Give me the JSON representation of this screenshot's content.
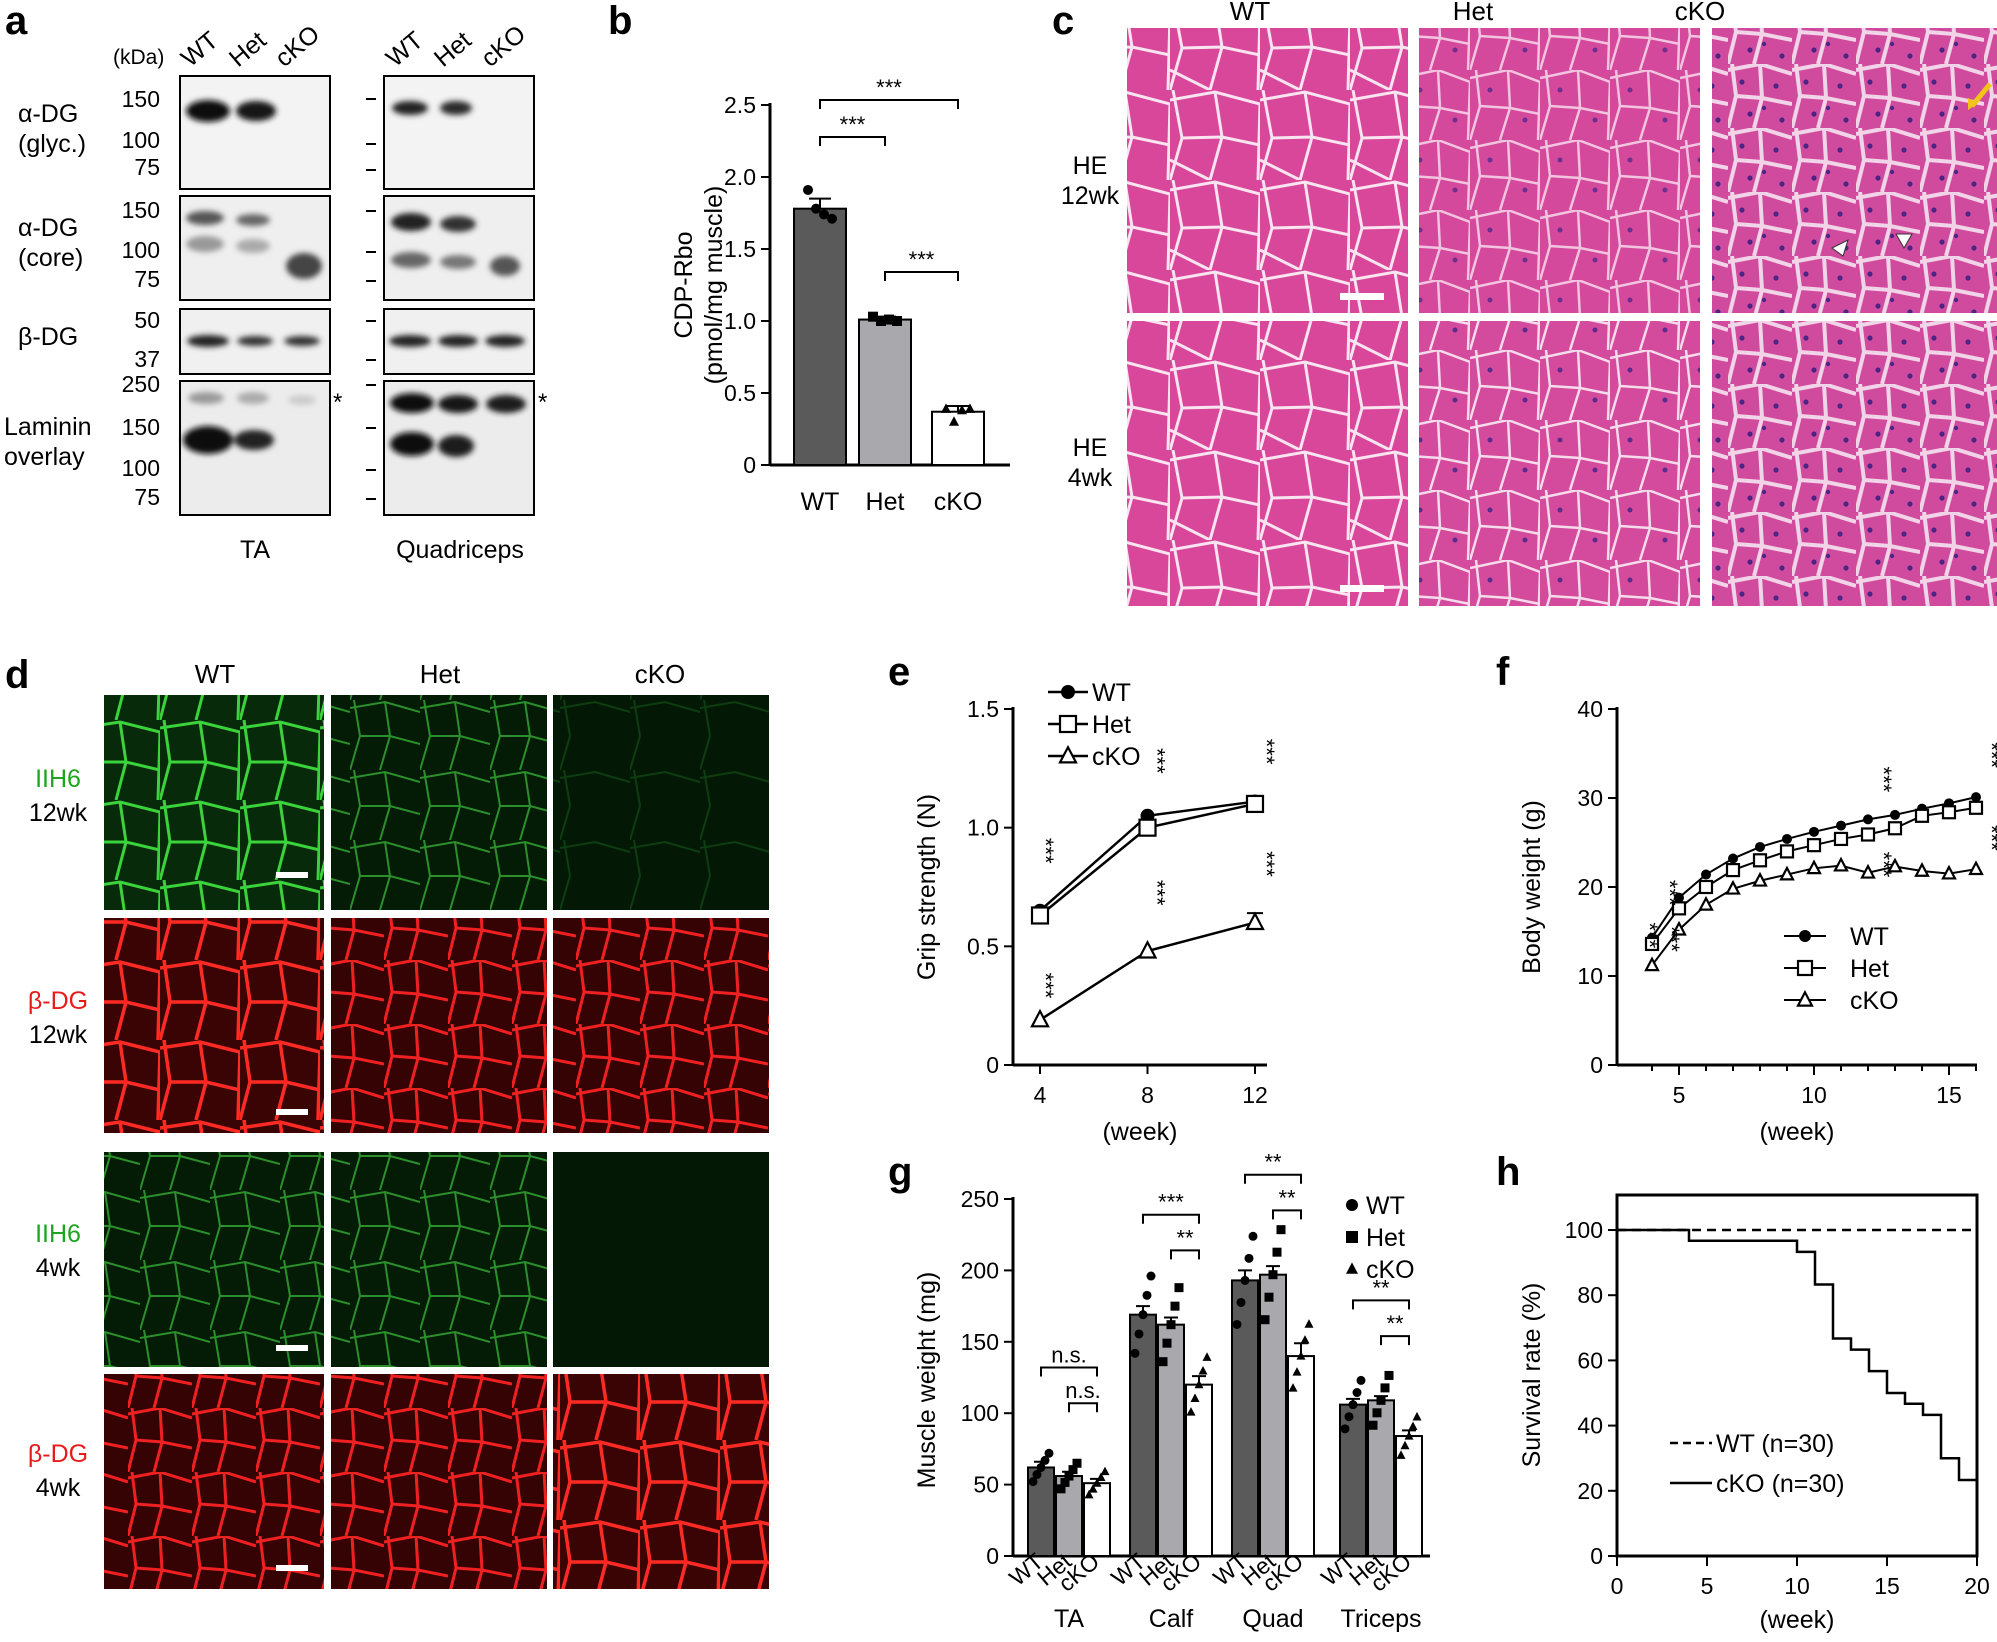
{
  "panels": {
    "a": {
      "letter": "a",
      "lanes": [
        "WT",
        "Het",
        "cKO"
      ],
      "kda": "(kDa)",
      "rows": [
        {
          "label1": "α-DG",
          "label2": "(glyc.)",
          "ticks": [
            "150",
            "100",
            "75"
          ]
        },
        {
          "label1": "α-DG",
          "label2": "(core)",
          "ticks": [
            "150",
            "100",
            "75"
          ]
        },
        {
          "label1": "β-DG",
          "label2": "",
          "ticks": [
            "50",
            "37"
          ]
        },
        {
          "label1": "Laminin",
          "label2": "overlay",
          "ticks": [
            "250",
            "150",
            "100",
            "75"
          ]
        }
      ],
      "asterisk": "*",
      "tissues": [
        "TA",
        "Quadriceps"
      ]
    },
    "b": {
      "letter": "b"
    },
    "c": {
      "letter": "c",
      "columns": [
        "WT",
        "Het",
        "cKO"
      ],
      "rows": [
        {
          "line1": "HE",
          "line2": "12wk"
        },
        {
          "line1": "HE",
          "line2": "4wk"
        }
      ]
    },
    "d": {
      "letter": "d",
      "columns": [
        "WT",
        "Het",
        "cKO"
      ],
      "rows": [
        {
          "line1": "IIH6",
          "line2": "12wk",
          "color": "#1ea51e"
        },
        {
          "line1": "β-DG",
          "line2": "12wk",
          "color": "#e81b1b"
        },
        {
          "line1": "IIH6",
          "line2": "4wk",
          "color": "#1ea51e"
        },
        {
          "line1": "β-DG",
          "line2": "4wk",
          "color": "#e81b1b"
        }
      ]
    },
    "e": {
      "letter": "e"
    },
    "f": {
      "letter": "f"
    },
    "g": {
      "letter": "g"
    },
    "h": {
      "letter": "h"
    }
  },
  "chart_data": [
    {
      "id": "b",
      "type": "bar",
      "ylabel": "CDP-Rbo",
      "ylabel2": "(pmol/mg muscle)",
      "categories": [
        "WT",
        "Het",
        "cKO"
      ],
      "values": [
        1.78,
        1.01,
        0.37
      ],
      "errors": [
        0.07,
        0.02,
        0.04
      ],
      "points": [
        [
          1.91,
          1.78,
          1.74,
          1.71
        ],
        [
          1.03,
          1.0,
          1.01,
          1.0
        ],
        [
          0.39,
          0.3,
          0.38,
          0.39
        ]
      ],
      "ylim": [
        0,
        2.5
      ],
      "yticks": [
        "0",
        "0.5",
        "1.0",
        "1.5",
        "2.0",
        "2.5"
      ],
      "significance": [
        "***",
        "***",
        "***"
      ]
    },
    {
      "id": "e",
      "type": "line",
      "ylabel": "Grip strength (N)",
      "xlabel": "(week)",
      "x": [
        4,
        8,
        12
      ],
      "series": [
        {
          "name": "WT",
          "values": [
            0.65,
            1.05,
            1.11
          ]
        },
        {
          "name": "Het",
          "values": [
            0.63,
            1.0,
            1.1
          ]
        },
        {
          "name": "cKO",
          "values": [
            0.19,
            0.48,
            0.6
          ]
        }
      ],
      "ylim": [
        0,
        1.5
      ],
      "yticks": [
        "0",
        "0.5",
        "1.0",
        "1.5"
      ],
      "xticks": [
        "4",
        "8",
        "12"
      ],
      "significance": "***"
    },
    {
      "id": "f",
      "type": "line",
      "ylabel": "Body weight (g)",
      "xlabel": "(week)",
      "x": [
        4,
        5,
        6,
        7,
        8,
        9,
        10,
        11,
        12,
        13,
        14,
        15,
        16
      ],
      "series": [
        {
          "name": "WT",
          "values": [
            14.3,
            18.8,
            21.4,
            23.2,
            24.5,
            25.4,
            26.2,
            26.9,
            27.6,
            28.1,
            28.8,
            29.4,
            30.1
          ]
        },
        {
          "name": "Het",
          "values": [
            13.6,
            17.6,
            20.0,
            21.9,
            23.0,
            24.0,
            24.7,
            25.4,
            25.9,
            26.6,
            28.0,
            28.4,
            28.9
          ]
        },
        {
          "name": "cKO",
          "values": [
            11.2,
            15.2,
            18.0,
            19.8,
            20.7,
            21.4,
            22.1,
            22.4,
            21.6,
            22.3,
            21.8,
            21.5,
            22.0
          ]
        }
      ],
      "ylim": [
        0,
        40
      ],
      "yticks": [
        "0",
        "10",
        "20",
        "30",
        "40"
      ],
      "xticks": [
        "5",
        "10",
        "15"
      ],
      "significance": "***"
    },
    {
      "id": "g",
      "type": "bar",
      "ylabel": "Muscle weight (mg)",
      "groups": [
        "TA",
        "Calf",
        "Quad",
        "Triceps"
      ],
      "genotypes": [
        "WT",
        "Het",
        "cKO"
      ],
      "legend": [
        "WT",
        "Het",
        "cKO"
      ],
      "values": [
        [
          62,
          56,
          51
        ],
        [
          169,
          162,
          120
        ],
        [
          193,
          197,
          140
        ],
        [
          106,
          109,
          84
        ]
      ],
      "errors": [
        [
          4,
          3,
          3
        ],
        [
          6,
          5,
          6
        ],
        [
          7,
          6,
          9
        ],
        [
          4,
          3,
          4
        ]
      ],
      "ylim": [
        0,
        250
      ],
      "yticks": [
        "0",
        "50",
        "100",
        "150",
        "200",
        "250"
      ],
      "significance": [
        [
          "n.s.",
          "n.s."
        ],
        [
          "***",
          "**"
        ],
        [
          "**",
          "**"
        ],
        [
          "**",
          "**"
        ]
      ]
    },
    {
      "id": "h",
      "type": "line",
      "ylabel": "Survival rate (%)",
      "xlabel": "(week)",
      "series": [
        {
          "name": "WT (n=30)",
          "x": [
            0,
            20
          ],
          "y": [
            100,
            100
          ]
        },
        {
          "name": "cKO (n=30)",
          "x": [
            0,
            4,
            10,
            11,
            12,
            13,
            14,
            15,
            16,
            17,
            18,
            19,
            20
          ],
          "y": [
            100,
            96.7,
            93.3,
            83.3,
            66.7,
            63.3,
            56.7,
            50,
            46.7,
            43.3,
            30,
            23.3,
            23.3
          ]
        }
      ],
      "xlim": [
        0,
        20
      ],
      "ylim": [
        0,
        100
      ],
      "xticks": [
        "0",
        "5",
        "10",
        "15",
        "20"
      ],
      "yticks": [
        "0",
        "20",
        "40",
        "60",
        "80",
        "100"
      ]
    }
  ]
}
